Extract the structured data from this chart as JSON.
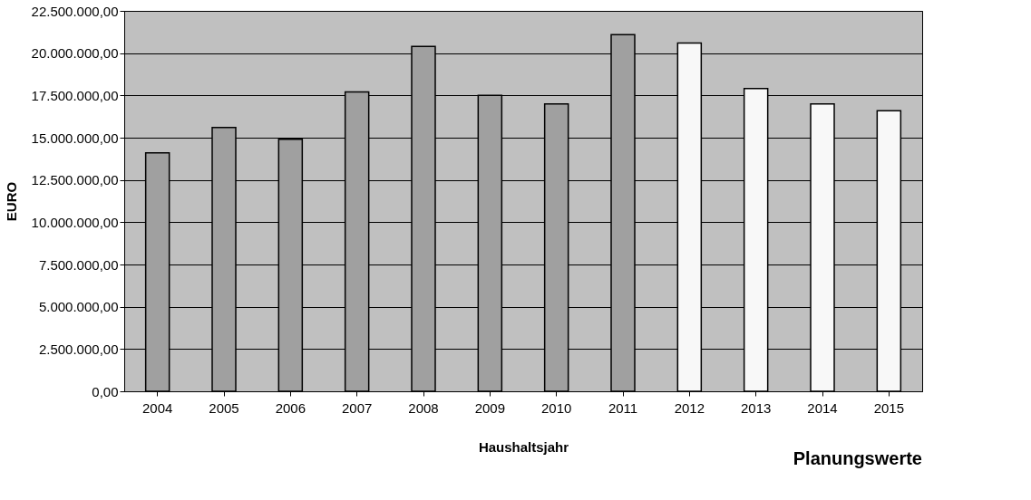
{
  "chart_data": {
    "type": "bar",
    "categories": [
      "2004",
      "2005",
      "2006",
      "2007",
      "2008",
      "2009",
      "2010",
      "2011",
      "2012",
      "2013",
      "2014",
      "2015"
    ],
    "values": [
      14100000,
      15600000,
      14900000,
      17700000,
      20400000,
      17500000,
      17000000,
      21100000,
      20600000,
      17900000,
      17000000,
      16600000
    ],
    "colors": [
      "#a0a0a0",
      "#a0a0a0",
      "#a0a0a0",
      "#a0a0a0",
      "#a0a0a0",
      "#a0a0a0",
      "#a0a0a0",
      "#a0a0a0",
      "#f8f8f8",
      "#f8f8f8",
      "#f8f8f8",
      "#f8f8f8"
    ],
    "xlabel": "Haushaltsjahr",
    "ylabel": "EURO",
    "annotations": [
      "Planungswerte"
    ],
    "ylim": [
      0,
      22500000
    ],
    "yticks": [
      {
        "value": 0,
        "label": "0,00"
      },
      {
        "value": 2500000,
        "label": "2.500.000,00"
      },
      {
        "value": 5000000,
        "label": "5.000.000,00"
      },
      {
        "value": 7500000,
        "label": "7.500.000,00"
      },
      {
        "value": 10000000,
        "label": "10.000.000,00"
      },
      {
        "value": 12500000,
        "label": "12.500.000,00"
      },
      {
        "value": 15000000,
        "label": "15.000.000,00"
      },
      {
        "value": 17500000,
        "label": "17.500.000,00"
      },
      {
        "value": 20000000,
        "label": "20.000.000,00"
      },
      {
        "value": 22500000,
        "label": "22.500.000,00"
      }
    ],
    "grid": "y"
  }
}
